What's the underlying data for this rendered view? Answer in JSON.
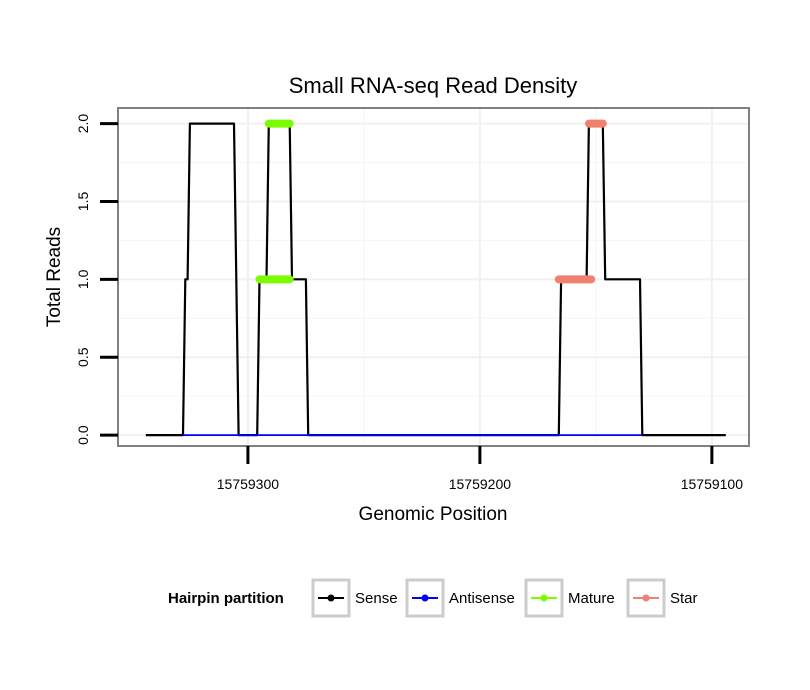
{
  "chart_data": {
    "type": "line",
    "title": "Small RNA-seq Read Density",
    "xlabel": "Genomic Position",
    "ylabel": "Total Reads",
    "x_reversed": true,
    "xlim": [
      15759356,
      15759084
    ],
    "ylim": [
      -0.07,
      2.1
    ],
    "x_ticks": [
      15759300,
      15759200,
      15759100
    ],
    "x_tick_labels": [
      "15759300",
      "15759200",
      "15759100"
    ],
    "y_ticks": [
      0,
      0.5,
      1,
      1.5,
      2
    ],
    "y_tick_labels": [
      "0.0",
      "0.5",
      "1.0",
      "1.5",
      "2.0"
    ],
    "grid": true,
    "legend": {
      "title": "Hairpin partition",
      "position": "bottom",
      "entries": [
        {
          "label": "Sense",
          "color": "#000000"
        },
        {
          "label": "Antisense",
          "color": "#0000ff"
        },
        {
          "label": "Mature",
          "color": "#7cfc00"
        },
        {
          "label": "Star",
          "color": "#f08070"
        }
      ]
    },
    "series": [
      {
        "name": "Sense",
        "color": "#000000",
        "points": [
          [
            15759344,
            0
          ],
          [
            15759328,
            0
          ],
          [
            15759327,
            1
          ],
          [
            15759326,
            1
          ],
          [
            15759325,
            2
          ],
          [
            15759306,
            2
          ],
          [
            15759304,
            0
          ],
          [
            15759296,
            0
          ],
          [
            15759295,
            1
          ],
          [
            15759292,
            1
          ],
          [
            15759291,
            2
          ],
          [
            15759282,
            2
          ],
          [
            15759281,
            1
          ],
          [
            15759275,
            1
          ],
          [
            15759274,
            0
          ],
          [
            15759166,
            0
          ],
          [
            15759165,
            1
          ],
          [
            15759154,
            1
          ],
          [
            15759153,
            2
          ],
          [
            15759147,
            2
          ],
          [
            15759146,
            1
          ],
          [
            15759131,
            1
          ],
          [
            15759130,
            0
          ],
          [
            15759094,
            0
          ]
        ]
      },
      {
        "name": "Antisense",
        "color": "#0000ff",
        "points": [
          [
            15759328,
            0
          ],
          [
            15759274,
            0
          ],
          [
            15759166,
            0
          ],
          [
            15759130,
            0
          ]
        ]
      },
      {
        "name": "Mature",
        "color": "#7cfc00",
        "segments": [
          {
            "y": 1,
            "x_start": 15759295,
            "x_end": 15759282
          },
          {
            "y": 2,
            "x_start": 15759291,
            "x_end": 15759282
          }
        ]
      },
      {
        "name": "Star",
        "color": "#f08070",
        "segments": [
          {
            "y": 1,
            "x_start": 15759166,
            "x_end": 15759152
          },
          {
            "y": 2,
            "x_start": 15759153,
            "x_end": 15759147
          }
        ]
      }
    ]
  }
}
